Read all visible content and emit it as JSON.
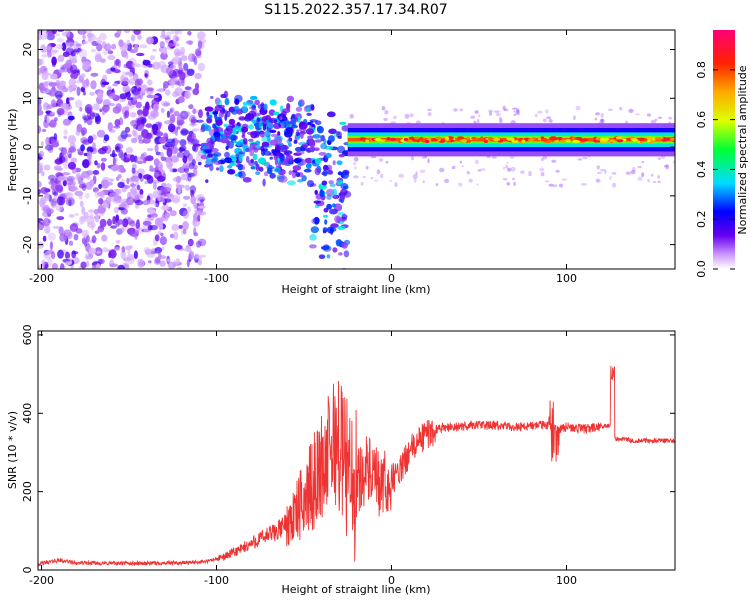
{
  "page": {
    "title": "S115.2022.357.17.34.R07"
  },
  "chart_data": [
    {
      "type": "heatmap",
      "xlabel": "Height of straight line (km)",
      "ylabel": "Frequency (Hz)",
      "xlim": [
        -202,
        162
      ],
      "ylim": [
        -25,
        24
      ],
      "xticks": [
        -200,
        -100,
        0,
        100
      ],
      "yticks": [
        -20,
        -10,
        0,
        10,
        20
      ],
      "colorbar": {
        "label": "Normalized spectral amplitude",
        "range": [
          0,
          0.96
        ],
        "ticks": [
          0.0,
          0.2,
          0.4,
          0.6,
          0.8
        ],
        "tick_labels": [
          "0.0",
          "0.2",
          "0.4",
          "0.6",
          "0.8"
        ]
      },
      "features": {
        "scatter_region_x": [
          -202,
          -108
        ],
        "scatter_region_freq": [
          -25,
          24
        ],
        "broadening_region_x": [
          -108,
          -25
        ],
        "steady_line_x": [
          -25,
          162
        ],
        "steady_line_freq": 1.5
      }
    },
    {
      "type": "line",
      "xlabel": "Height of straight line (km)",
      "ylabel": "SNR (10 * v/v)",
      "xlim": [
        -202,
        162
      ],
      "ylim": [
        0,
        610
      ],
      "xticks": [
        -200,
        -100,
        0,
        100
      ],
      "yticks": [
        0,
        200,
        400,
        600
      ],
      "color": "#ee3333",
      "series": [
        {
          "x": [
            -202,
            -190,
            -180,
            -160,
            -140,
            -120,
            -105,
            -95,
            -85,
            -75,
            -65,
            -55,
            -45,
            -38,
            -32,
            -28,
            -25,
            -22,
            -18,
            -14,
            -10,
            -6,
            -2,
            2,
            6,
            10,
            14,
            18,
            22,
            26,
            30,
            35,
            40,
            45,
            50,
            60,
            70,
            80,
            90,
            95,
            100,
            110,
            120,
            126,
            127,
            128,
            130,
            140,
            150,
            162
          ],
          "y": [
            15,
            25,
            18,
            17,
            17,
            18,
            22,
            35,
            55,
            80,
            100,
            140,
            220,
            280,
            330,
            300,
            260,
            200,
            240,
            260,
            230,
            210,
            220,
            240,
            260,
            300,
            320,
            340,
            350,
            360,
            365,
            365,
            365,
            370,
            370,
            368,
            365,
            368,
            370,
            360,
            365,
            360,
            365,
            370,
            340,
            335,
            335,
            330,
            330,
            330
          ]
        }
      ]
    }
  ]
}
